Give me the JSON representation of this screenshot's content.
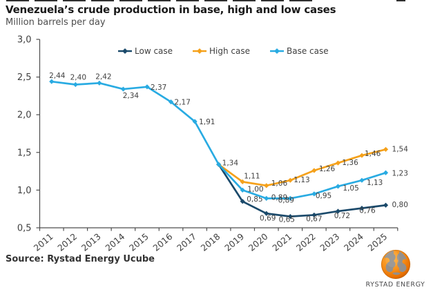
{
  "header": {
    "title": "Venezuela’s crude production in base, high and low cases",
    "subtitle": "Million barrels per day"
  },
  "footer": {
    "source": "Source: Rystad Energy Ucube",
    "logo_text": "RYSTAD ENERGY"
  },
  "colors": {
    "axis": "#4d4d4d",
    "text": "#404040",
    "low_case": "#1b4a6b",
    "high_case": "#f5a11b",
    "base_case": "#29abe2"
  },
  "chart_data": {
    "type": "line",
    "title": "Venezuela’s crude production in base, high and low cases",
    "ylabel": "Million barrels per day",
    "x": [
      "2011",
      "2012",
      "2013",
      "2014",
      "2015",
      "2016",
      "2017",
      "2018",
      "2019",
      "2020",
      "2021",
      "2022",
      "2023",
      "2024",
      "2025"
    ],
    "ylim": [
      0.5,
      3.0
    ],
    "ytick_step": 0.5,
    "grid": false,
    "legend_position": "top",
    "decimal_separator": ",",
    "series": [
      {
        "name": "Low case",
        "color": "#1b4a6b",
        "values": [
          null,
          null,
          null,
          null,
          null,
          null,
          null,
          1.34,
          0.85,
          0.69,
          0.65,
          0.67,
          0.72,
          0.76,
          0.8
        ],
        "label_offsets": [
          null,
          null,
          null,
          null,
          null,
          null,
          null,
          null,
          [
            6,
            0,
            "s"
          ],
          [
            2,
            10,
            "m"
          ],
          [
            -5,
            8,
            "m"
          ],
          [
            0,
            9,
            "m"
          ],
          [
            6,
            10,
            "m"
          ],
          [
            8,
            7,
            "m"
          ],
          [
            9,
            3,
            "s"
          ]
        ]
      },
      {
        "name": "High case",
        "color": "#f5a11b",
        "values": [
          null,
          null,
          null,
          null,
          null,
          null,
          null,
          1.34,
          1.11,
          1.06,
          1.13,
          1.26,
          1.36,
          1.46,
          1.54
        ],
        "label_offsets": [
          null,
          null,
          null,
          null,
          null,
          null,
          null,
          null,
          [
            2,
            -5,
            "s"
          ],
          [
            7,
            0,
            "s"
          ],
          [
            5,
            3,
            "s"
          ],
          [
            7,
            1,
            "s"
          ],
          [
            6,
            3,
            "s"
          ],
          [
            4,
            1,
            "s"
          ],
          [
            9,
            3,
            "s"
          ]
        ]
      },
      {
        "name": "Base case",
        "color": "#29abe2",
        "values": [
          2.44,
          2.4,
          2.42,
          2.34,
          2.37,
          2.17,
          1.91,
          1.34,
          1.0,
          0.89,
          0.89,
          0.95,
          1.05,
          1.13,
          1.23
        ],
        "label_offsets": [
          [
            8,
            -5,
            "m"
          ],
          [
            4,
            -7,
            "m"
          ],
          [
            6,
            -6,
            "m"
          ],
          [
            11,
            13,
            "m"
          ],
          [
            5,
            4,
            "s"
          ],
          [
            5,
            4,
            "s"
          ],
          [
            6,
            4,
            "s"
          ],
          [
            5,
            1,
            "s"
          ],
          [
            7,
            2,
            "s"
          ],
          [
            7,
            2,
            "s"
          ],
          [
            -6,
            6,
            "m"
          ],
          [
            2,
            6,
            "s"
          ],
          [
            7,
            6,
            "s"
          ],
          [
            7,
            7,
            "s"
          ],
          [
            9,
            4,
            "s"
          ]
        ]
      }
    ]
  }
}
